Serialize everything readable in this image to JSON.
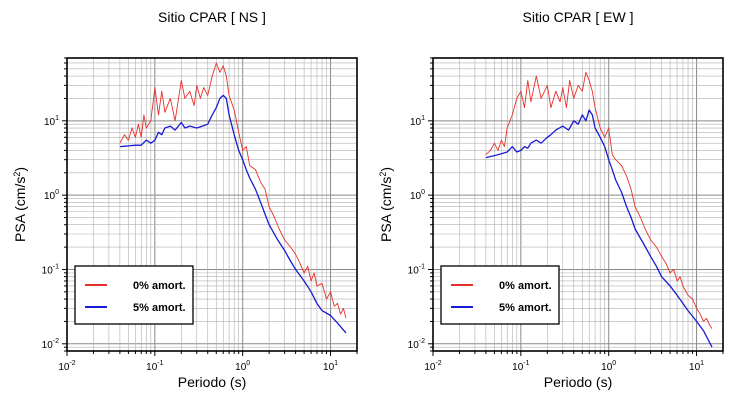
{
  "chart_data": [
    {
      "type": "line",
      "title": "Sitio CPAR [ NS ]",
      "xlabel": "Periodo (s)",
      "ylabel_main": "PSA (cm/s",
      "ylabel_sup": "2",
      "ylabel_tail": ")",
      "xscale": "log",
      "yscale": "log",
      "xlim": [
        0.01,
        20
      ],
      "ylim": [
        0.008,
        70
      ],
      "grid": true,
      "legend_placement": "bottom-left",
      "x_ticks": [
        {
          "base": "10",
          "exp": "-2",
          "value": 0.01
        },
        {
          "base": "10",
          "exp": "-1",
          "value": 0.1
        },
        {
          "base": "10",
          "exp": "0",
          "value": 1
        },
        {
          "base": "10",
          "exp": "1",
          "value": 10
        }
      ],
      "y_ticks": [
        {
          "base": "10",
          "exp": "-2",
          "value": 0.01
        },
        {
          "base": "10",
          "exp": "-1",
          "value": 0.1
        },
        {
          "base": "10",
          "exp": "0",
          "value": 1
        },
        {
          "base": "10",
          "exp": "1",
          "value": 10
        }
      ],
      "series": [
        {
          "name": "0% amort.",
          "color": "#e8302b",
          "x": [
            0.04,
            0.045,
            0.05,
            0.055,
            0.06,
            0.065,
            0.07,
            0.075,
            0.08,
            0.09,
            0.1,
            0.11,
            0.12,
            0.13,
            0.15,
            0.17,
            0.2,
            0.22,
            0.25,
            0.28,
            0.3,
            0.33,
            0.36,
            0.4,
            0.45,
            0.5,
            0.55,
            0.6,
            0.65,
            0.7,
            0.8,
            0.9,
            1.0,
            1.1,
            1.2,
            1.4,
            1.6,
            1.8,
            2.0,
            2.3,
            2.6,
            3.0,
            3.5,
            4.0,
            4.5,
            5.0,
            5.5,
            6.0,
            6.5,
            7.0,
            8.0,
            9.0,
            10.0,
            11.0,
            12.0,
            13.0,
            14.0,
            15.0
          ],
          "y": [
            5.0,
            6.5,
            5.5,
            8.0,
            6.0,
            9.0,
            6.0,
            12.0,
            8.0,
            10.0,
            28.0,
            12.0,
            25.0,
            13.0,
            20.0,
            10.0,
            35.0,
            20.0,
            25.0,
            16.0,
            30.0,
            20.0,
            28.0,
            22.0,
            40.0,
            60.0,
            45.0,
            55.0,
            40.0,
            22.0,
            14.0,
            7.0,
            4.0,
            4.5,
            2.5,
            2.2,
            1.5,
            1.2,
            0.7,
            0.5,
            0.35,
            0.25,
            0.2,
            0.16,
            0.12,
            0.09,
            0.11,
            0.07,
            0.09,
            0.06,
            0.065,
            0.04,
            0.05,
            0.032,
            0.035,
            0.025,
            0.03,
            0.022
          ]
        },
        {
          "name": "5% amort.",
          "color": "#1a1ad6",
          "x": [
            0.04,
            0.05,
            0.06,
            0.07,
            0.08,
            0.09,
            0.1,
            0.11,
            0.12,
            0.13,
            0.15,
            0.17,
            0.2,
            0.22,
            0.25,
            0.3,
            0.35,
            0.4,
            0.45,
            0.5,
            0.55,
            0.6,
            0.65,
            0.7,
            0.8,
            0.9,
            1.0,
            1.1,
            1.2,
            1.4,
            1.6,
            1.8,
            2.0,
            2.5,
            3.0,
            3.5,
            4.0,
            5.0,
            6.0,
            7.0,
            8.0,
            10.0,
            12.0,
            15.0
          ],
          "y": [
            4.5,
            4.6,
            4.7,
            4.7,
            5.5,
            5.0,
            5.5,
            7.0,
            6.5,
            8.0,
            8.5,
            7.5,
            9.5,
            8.0,
            8.5,
            8.0,
            8.5,
            9.0,
            12.0,
            15.0,
            20.0,
            22.0,
            20.0,
            12.0,
            6.5,
            4.0,
            3.0,
            2.2,
            1.7,
            1.2,
            0.8,
            0.55,
            0.4,
            0.25,
            0.18,
            0.13,
            0.1,
            0.07,
            0.05,
            0.035,
            0.028,
            0.024,
            0.019,
            0.014
          ]
        }
      ]
    },
    {
      "type": "line",
      "title": "Sitio CPAR [ EW ]",
      "xlabel": "Periodo (s)",
      "ylabel_main": "PSA (cm/s",
      "ylabel_sup": "2",
      "ylabel_tail": ")",
      "xscale": "log",
      "yscale": "log",
      "xlim": [
        0.01,
        20
      ],
      "ylim": [
        0.008,
        70
      ],
      "grid": true,
      "legend_placement": "bottom-left",
      "x_ticks": [
        {
          "base": "10",
          "exp": "-2",
          "value": 0.01
        },
        {
          "base": "10",
          "exp": "-1",
          "value": 0.1
        },
        {
          "base": "10",
          "exp": "0",
          "value": 1
        },
        {
          "base": "10",
          "exp": "1",
          "value": 10
        }
      ],
      "y_ticks": [
        {
          "base": "10",
          "exp": "-2",
          "value": 0.01
        },
        {
          "base": "10",
          "exp": "-1",
          "value": 0.1
        },
        {
          "base": "10",
          "exp": "0",
          "value": 1
        },
        {
          "base": "10",
          "exp": "1",
          "value": 10
        }
      ],
      "series": [
        {
          "name": "0% amort.",
          "color": "#e8302b",
          "x": [
            0.04,
            0.045,
            0.05,
            0.055,
            0.06,
            0.065,
            0.07,
            0.08,
            0.09,
            0.1,
            0.11,
            0.12,
            0.13,
            0.15,
            0.17,
            0.2,
            0.22,
            0.25,
            0.28,
            0.3,
            0.33,
            0.36,
            0.4,
            0.45,
            0.5,
            0.55,
            0.6,
            0.65,
            0.7,
            0.8,
            0.9,
            1.0,
            1.1,
            1.2,
            1.4,
            1.6,
            1.8,
            2.0,
            2.3,
            2.6,
            3.0,
            3.5,
            4.0,
            4.5,
            5.0,
            5.5,
            6.0,
            6.5,
            7.0,
            8.0,
            9.0,
            10.0,
            11.0,
            12.0,
            13.0,
            14.0,
            15.0
          ],
          "y": [
            3.5,
            4.0,
            5.0,
            4.0,
            5.5,
            4.5,
            8.0,
            12.0,
            20.0,
            25.0,
            15.0,
            35.0,
            18.0,
            40.0,
            20.0,
            30.0,
            15.0,
            25.0,
            18.0,
            28.0,
            15.0,
            35.0,
            20.0,
            30.0,
            25.0,
            45.0,
            35.0,
            25.0,
            15.0,
            8.0,
            6.0,
            8.0,
            3.5,
            3.0,
            2.5,
            1.8,
            1.2,
            0.7,
            0.5,
            0.35,
            0.25,
            0.2,
            0.15,
            0.12,
            0.09,
            0.1,
            0.07,
            0.08,
            0.06,
            0.045,
            0.04,
            0.03,
            0.025,
            0.02,
            0.022,
            0.018,
            0.016
          ]
        },
        {
          "name": "5% amort.",
          "color": "#1a1ad6",
          "x": [
            0.04,
            0.05,
            0.06,
            0.07,
            0.08,
            0.09,
            0.1,
            0.11,
            0.12,
            0.13,
            0.15,
            0.17,
            0.2,
            0.22,
            0.25,
            0.3,
            0.35,
            0.4,
            0.45,
            0.5,
            0.55,
            0.6,
            0.65,
            0.7,
            0.8,
            0.9,
            1.0,
            1.1,
            1.2,
            1.4,
            1.6,
            1.8,
            2.0,
            2.5,
            3.0,
            3.5,
            4.0,
            5.0,
            6.0,
            7.0,
            8.0,
            10.0,
            12.0,
            15.0
          ],
          "y": [
            3.2,
            3.4,
            3.6,
            3.8,
            4.5,
            3.8,
            4.0,
            4.5,
            4.3,
            5.0,
            5.5,
            5.0,
            6.0,
            6.5,
            7.5,
            8.5,
            7.5,
            10.0,
            9.0,
            12.0,
            10.0,
            14.0,
            12.0,
            8.0,
            6.0,
            4.5,
            3.0,
            2.2,
            1.6,
            1.1,
            0.7,
            0.5,
            0.35,
            0.22,
            0.15,
            0.11,
            0.08,
            0.06,
            0.045,
            0.035,
            0.028,
            0.02,
            0.015,
            0.009
          ]
        }
      ]
    }
  ]
}
